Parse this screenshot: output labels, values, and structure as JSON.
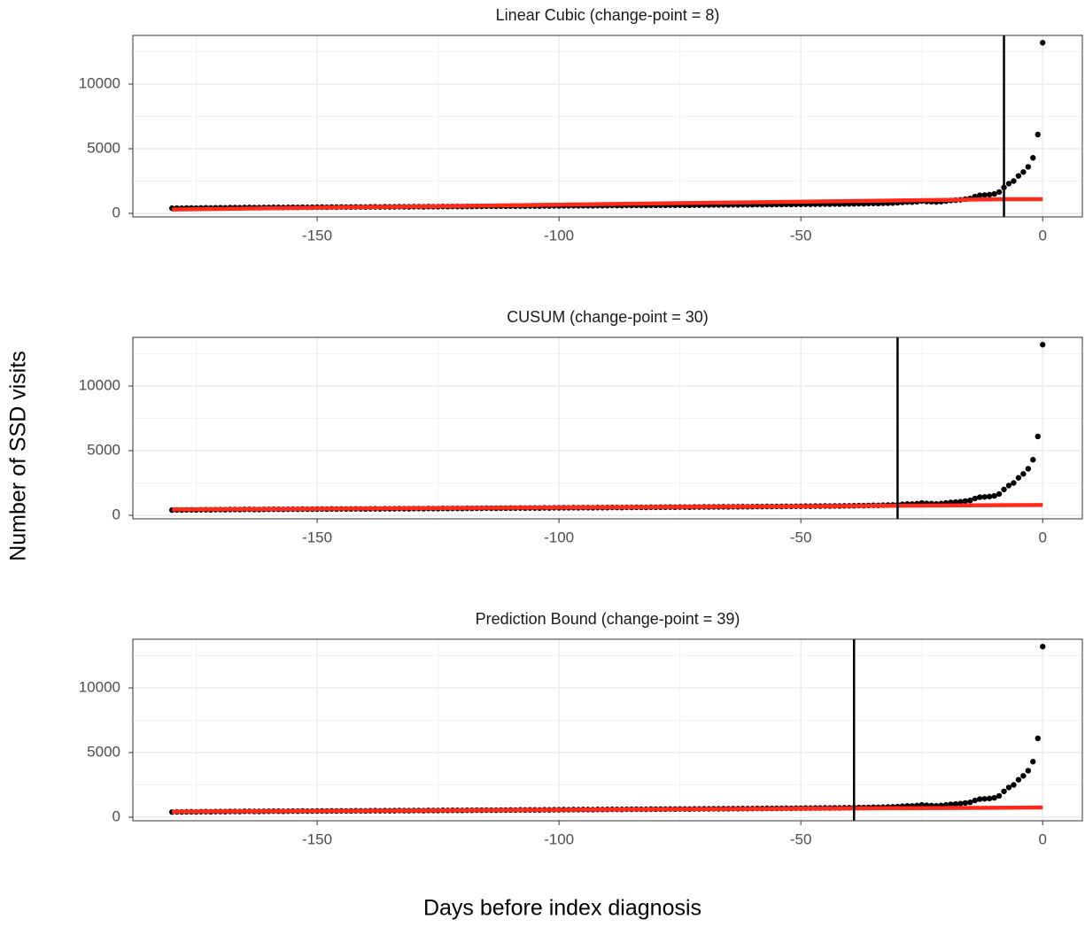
{
  "xlabel": "Days before index diagnosis",
  "ylabel": "Number of SSD visits",
  "chart_data": [
    {
      "type": "scatter",
      "title": "Linear Cubic (change-point = 8)",
      "changepoint_x": -8,
      "xlim": [
        -188.1,
        8.2
      ],
      "ylim": [
        -274,
        13767
      ],
      "xticks": [
        -150,
        -100,
        -50,
        0
      ],
      "yticks": [
        0,
        5000,
        10000
      ],
      "xminor": [
        -175,
        -125,
        -75,
        -25
      ],
      "yminor": [
        2500,
        7500,
        12500
      ],
      "grid": true,
      "x": [
        -180,
        -179,
        -178,
        -177,
        -176,
        -175,
        -174,
        -173,
        -172,
        -171,
        -170,
        -169,
        -168,
        -167,
        -166,
        -165,
        -164,
        -163,
        -162,
        -161,
        -160,
        -159,
        -158,
        -157,
        -156,
        -155,
        -154,
        -153,
        -152,
        -151,
        -150,
        -149,
        -148,
        -147,
        -146,
        -145,
        -144,
        -143,
        -142,
        -141,
        -140,
        -139,
        -138,
        -137,
        -136,
        -135,
        -134,
        -133,
        -132,
        -131,
        -130,
        -129,
        -128,
        -127,
        -126,
        -125,
        -124,
        -123,
        -122,
        -121,
        -120,
        -119,
        -118,
        -117,
        -116,
        -115,
        -114,
        -113,
        -112,
        -111,
        -110,
        -109,
        -108,
        -107,
        -106,
        -105,
        -104,
        -103,
        -102,
        -101,
        -100,
        -99,
        -98,
        -97,
        -96,
        -95,
        -94,
        -93,
        -92,
        -91,
        -90,
        -89,
        -88,
        -87,
        -86,
        -85,
        -84,
        -83,
        -82,
        -81,
        -80,
        -79,
        -78,
        -77,
        -76,
        -75,
        -74,
        -73,
        -72,
        -71,
        -70,
        -69,
        -68,
        -67,
        -66,
        -65,
        -64,
        -63,
        -62,
        -61,
        -60,
        -59,
        -58,
        -57,
        -56,
        -55,
        -54,
        -53,
        -52,
        -51,
        -50,
        -49,
        -48,
        -47,
        -46,
        -45,
        -44,
        -43,
        -42,
        -41,
        -40,
        -39,
        -38,
        -37,
        -36,
        -35,
        -34,
        -33,
        -32,
        -31,
        -30,
        -29,
        -28,
        -27,
        -26,
        -25,
        -24,
        -23,
        -22,
        -21,
        -20,
        -19,
        -18,
        -17,
        -16,
        -15,
        -14,
        -13,
        -12,
        -11,
        -10,
        -9,
        -8,
        -7,
        -6,
        -5,
        -4,
        -3,
        -2,
        -1,
        0
      ],
      "series": [
        {
          "color": "#000000",
          "values": [
            400,
            410,
            405,
            415,
            420,
            410,
            425,
            430,
            420,
            435,
            440,
            430,
            445,
            450,
            440,
            455,
            460,
            450,
            445,
            455,
            460,
            470,
            465,
            455,
            470,
            475,
            465,
            480,
            470,
            475,
            480,
            485,
            475,
            490,
            480,
            495,
            485,
            490,
            500,
            495,
            490,
            500,
            505,
            495,
            510,
            500,
            505,
            515,
            510,
            505,
            515,
            520,
            510,
            525,
            520,
            515,
            530,
            525,
            535,
            530,
            525,
            540,
            535,
            545,
            540,
            550,
            545,
            540,
            555,
            550,
            560,
            555,
            565,
            560,
            570,
            565,
            560,
            575,
            570,
            580,
            575,
            585,
            580,
            590,
            585,
            595,
            590,
            585,
            600,
            595,
            600,
            610,
            605,
            600,
            615,
            610,
            620,
            615,
            610,
            625,
            620,
            630,
            625,
            635,
            630,
            640,
            635,
            630,
            645,
            640,
            650,
            645,
            655,
            650,
            660,
            655,
            665,
            660,
            670,
            665,
            670,
            680,
            675,
            685,
            680,
            690,
            685,
            695,
            690,
            700,
            700,
            710,
            705,
            715,
            710,
            720,
            715,
            725,
            720,
            730,
            735,
            740,
            750,
            745,
            760,
            770,
            765,
            780,
            790,
            800,
            820,
            850,
            880,
            870,
            900,
            950,
            920,
            900,
            880,
            910,
            950,
            1000,
            1020,
            1050,
            1100,
            1150,
            1300,
            1400,
            1420,
            1450,
            1500,
            1650,
            2000,
            2300,
            2500,
            2900,
            3200,
            3600,
            4300,
            6100,
            13200
          ]
        },
        {
          "color": "#ff2a1a",
          "mode": "line",
          "x": [
            -180,
            -8,
            0
          ],
          "values": [
            300,
            1100,
            1100
          ]
        }
      ]
    },
    {
      "type": "scatter",
      "title": "CUSUM (change-point = 30)",
      "changepoint_x": -30,
      "xlim": [
        -188.1,
        8.2
      ],
      "ylim": [
        -274,
        13767
      ],
      "xticks": [
        -150,
        -100,
        -50,
        0
      ],
      "yticks": [
        0,
        5000,
        10000
      ],
      "xminor": [
        -175,
        -125,
        -75,
        -25
      ],
      "yminor": [
        2500,
        7500,
        12500
      ],
      "grid": true,
      "x": [
        -180,
        -179,
        -178,
        -177,
        -176,
        -175,
        -174,
        -173,
        -172,
        -171,
        -170,
        -169,
        -168,
        -167,
        -166,
        -165,
        -164,
        -163,
        -162,
        -161,
        -160,
        -159,
        -158,
        -157,
        -156,
        -155,
        -154,
        -153,
        -152,
        -151,
        -150,
        -149,
        -148,
        -147,
        -146,
        -145,
        -144,
        -143,
        -142,
        -141,
        -140,
        -139,
        -138,
        -137,
        -136,
        -135,
        -134,
        -133,
        -132,
        -131,
        -130,
        -129,
        -128,
        -127,
        -126,
        -125,
        -124,
        -123,
        -122,
        -121,
        -120,
        -119,
        -118,
        -117,
        -116,
        -115,
        -114,
        -113,
        -112,
        -111,
        -110,
        -109,
        -108,
        -107,
        -106,
        -105,
        -104,
        -103,
        -102,
        -101,
        -100,
        -99,
        -98,
        -97,
        -96,
        -95,
        -94,
        -93,
        -92,
        -91,
        -90,
        -89,
        -88,
        -87,
        -86,
        -85,
        -84,
        -83,
        -82,
        -81,
        -80,
        -79,
        -78,
        -77,
        -76,
        -75,
        -74,
        -73,
        -72,
        -71,
        -70,
        -69,
        -68,
        -67,
        -66,
        -65,
        -64,
        -63,
        -62,
        -61,
        -60,
        -59,
        -58,
        -57,
        -56,
        -55,
        -54,
        -53,
        -52,
        -51,
        -50,
        -49,
        -48,
        -47,
        -46,
        -45,
        -44,
        -43,
        -42,
        -41,
        -40,
        -39,
        -38,
        -37,
        -36,
        -35,
        -34,
        -33,
        -32,
        -31,
        -30,
        -29,
        -28,
        -27,
        -26,
        -25,
        -24,
        -23,
        -22,
        -21,
        -20,
        -19,
        -18,
        -17,
        -16,
        -15,
        -14,
        -13,
        -12,
        -11,
        -10,
        -9,
        -8,
        -7,
        -6,
        -5,
        -4,
        -3,
        -2,
        -1,
        0
      ],
      "series": [
        {
          "color": "#000000",
          "values": [
            400,
            410,
            405,
            415,
            420,
            410,
            425,
            430,
            420,
            435,
            440,
            430,
            445,
            450,
            440,
            455,
            460,
            450,
            445,
            455,
            460,
            470,
            465,
            455,
            470,
            475,
            465,
            480,
            470,
            475,
            480,
            485,
            475,
            490,
            480,
            495,
            485,
            490,
            500,
            495,
            490,
            500,
            505,
            495,
            510,
            500,
            505,
            515,
            510,
            505,
            515,
            520,
            510,
            525,
            520,
            515,
            530,
            525,
            535,
            530,
            525,
            540,
            535,
            545,
            540,
            550,
            545,
            540,
            555,
            550,
            560,
            555,
            565,
            560,
            570,
            565,
            560,
            575,
            570,
            580,
            575,
            585,
            580,
            590,
            585,
            595,
            590,
            585,
            600,
            595,
            600,
            610,
            605,
            600,
            615,
            610,
            620,
            615,
            610,
            625,
            620,
            630,
            625,
            635,
            630,
            640,
            635,
            630,
            645,
            640,
            650,
            645,
            655,
            650,
            660,
            655,
            665,
            660,
            670,
            665,
            670,
            680,
            675,
            685,
            680,
            690,
            685,
            695,
            690,
            700,
            700,
            710,
            705,
            715,
            710,
            720,
            715,
            725,
            720,
            730,
            735,
            740,
            750,
            745,
            760,
            770,
            765,
            780,
            790,
            800,
            820,
            850,
            880,
            870,
            900,
            950,
            920,
            900,
            880,
            910,
            950,
            1000,
            1020,
            1050,
            1100,
            1150,
            1300,
            1400,
            1420,
            1450,
            1500,
            1650,
            2000,
            2300,
            2500,
            2900,
            3200,
            3600,
            4300,
            6100,
            13200
          ]
        },
        {
          "color": "#ff2a1a",
          "mode": "line",
          "x": [
            -180,
            0
          ],
          "values": [
            450,
            800
          ]
        }
      ]
    },
    {
      "type": "scatter",
      "title": "Prediction Bound (change-point = 39)",
      "changepoint_x": -39,
      "xlim": [
        -188.1,
        8.2
      ],
      "ylim": [
        -274,
        13767
      ],
      "xticks": [
        -150,
        -100,
        -50,
        0
      ],
      "yticks": [
        0,
        5000,
        10000
      ],
      "xminor": [
        -175,
        -125,
        -75,
        -25
      ],
      "yminor": [
        2500,
        7500,
        12500
      ],
      "grid": true,
      "x": [
        -180,
        -179,
        -178,
        -177,
        -176,
        -175,
        -174,
        -173,
        -172,
        -171,
        -170,
        -169,
        -168,
        -167,
        -166,
        -165,
        -164,
        -163,
        -162,
        -161,
        -160,
        -159,
        -158,
        -157,
        -156,
        -155,
        -154,
        -153,
        -152,
        -151,
        -150,
        -149,
        -148,
        -147,
        -146,
        -145,
        -144,
        -143,
        -142,
        -141,
        -140,
        -139,
        -138,
        -137,
        -136,
        -135,
        -134,
        -133,
        -132,
        -131,
        -130,
        -129,
        -128,
        -127,
        -126,
        -125,
        -124,
        -123,
        -122,
        -121,
        -120,
        -119,
        -118,
        -117,
        -116,
        -115,
        -114,
        -113,
        -112,
        -111,
        -110,
        -109,
        -108,
        -107,
        -106,
        -105,
        -104,
        -103,
        -102,
        -101,
        -100,
        -99,
        -98,
        -97,
        -96,
        -95,
        -94,
        -93,
        -92,
        -91,
        -90,
        -89,
        -88,
        -87,
        -86,
        -85,
        -84,
        -83,
        -82,
        -81,
        -80,
        -79,
        -78,
        -77,
        -76,
        -75,
        -74,
        -73,
        -72,
        -71,
        -70,
        -69,
        -68,
        -67,
        -66,
        -65,
        -64,
        -63,
        -62,
        -61,
        -60,
        -59,
        -58,
        -57,
        -56,
        -55,
        -54,
        -53,
        -52,
        -51,
        -50,
        -49,
        -48,
        -47,
        -46,
        -45,
        -44,
        -43,
        -42,
        -41,
        -40,
        -39,
        -38,
        -37,
        -36,
        -35,
        -34,
        -33,
        -32,
        -31,
        -30,
        -29,
        -28,
        -27,
        -26,
        -25,
        -24,
        -23,
        -22,
        -21,
        -20,
        -19,
        -18,
        -17,
        -16,
        -15,
        -14,
        -13,
        -12,
        -11,
        -10,
        -9,
        -8,
        -7,
        -6,
        -5,
        -4,
        -3,
        -2,
        -1,
        0
      ],
      "series": [
        {
          "color": "#000000",
          "values": [
            400,
            410,
            405,
            415,
            420,
            410,
            425,
            430,
            420,
            435,
            440,
            430,
            445,
            450,
            440,
            455,
            460,
            450,
            445,
            455,
            460,
            470,
            465,
            455,
            470,
            475,
            465,
            480,
            470,
            475,
            480,
            485,
            475,
            490,
            480,
            495,
            485,
            490,
            500,
            495,
            490,
            500,
            505,
            495,
            510,
            500,
            505,
            515,
            510,
            505,
            515,
            520,
            510,
            525,
            520,
            515,
            530,
            525,
            535,
            530,
            525,
            540,
            535,
            545,
            540,
            550,
            545,
            540,
            555,
            550,
            560,
            555,
            565,
            560,
            570,
            565,
            560,
            575,
            570,
            580,
            575,
            585,
            580,
            590,
            585,
            595,
            590,
            585,
            600,
            595,
            600,
            610,
            605,
            600,
            615,
            610,
            620,
            615,
            610,
            625,
            620,
            630,
            625,
            635,
            630,
            640,
            635,
            630,
            645,
            640,
            650,
            645,
            655,
            650,
            660,
            655,
            665,
            660,
            670,
            665,
            670,
            680,
            675,
            685,
            680,
            690,
            685,
            695,
            690,
            700,
            700,
            710,
            705,
            715,
            710,
            720,
            715,
            725,
            720,
            730,
            735,
            740,
            750,
            745,
            760,
            770,
            765,
            780,
            790,
            800,
            820,
            850,
            880,
            870,
            900,
            950,
            920,
            900,
            880,
            910,
            950,
            1000,
            1020,
            1050,
            1100,
            1150,
            1300,
            1400,
            1420,
            1450,
            1500,
            1650,
            2000,
            2300,
            2500,
            2900,
            3200,
            3600,
            4300,
            6100,
            13200
          ]
        },
        {
          "color": "#ff2a1a",
          "mode": "line",
          "x": [
            -180,
            0
          ],
          "values": [
            430,
            750
          ]
        }
      ]
    }
  ]
}
